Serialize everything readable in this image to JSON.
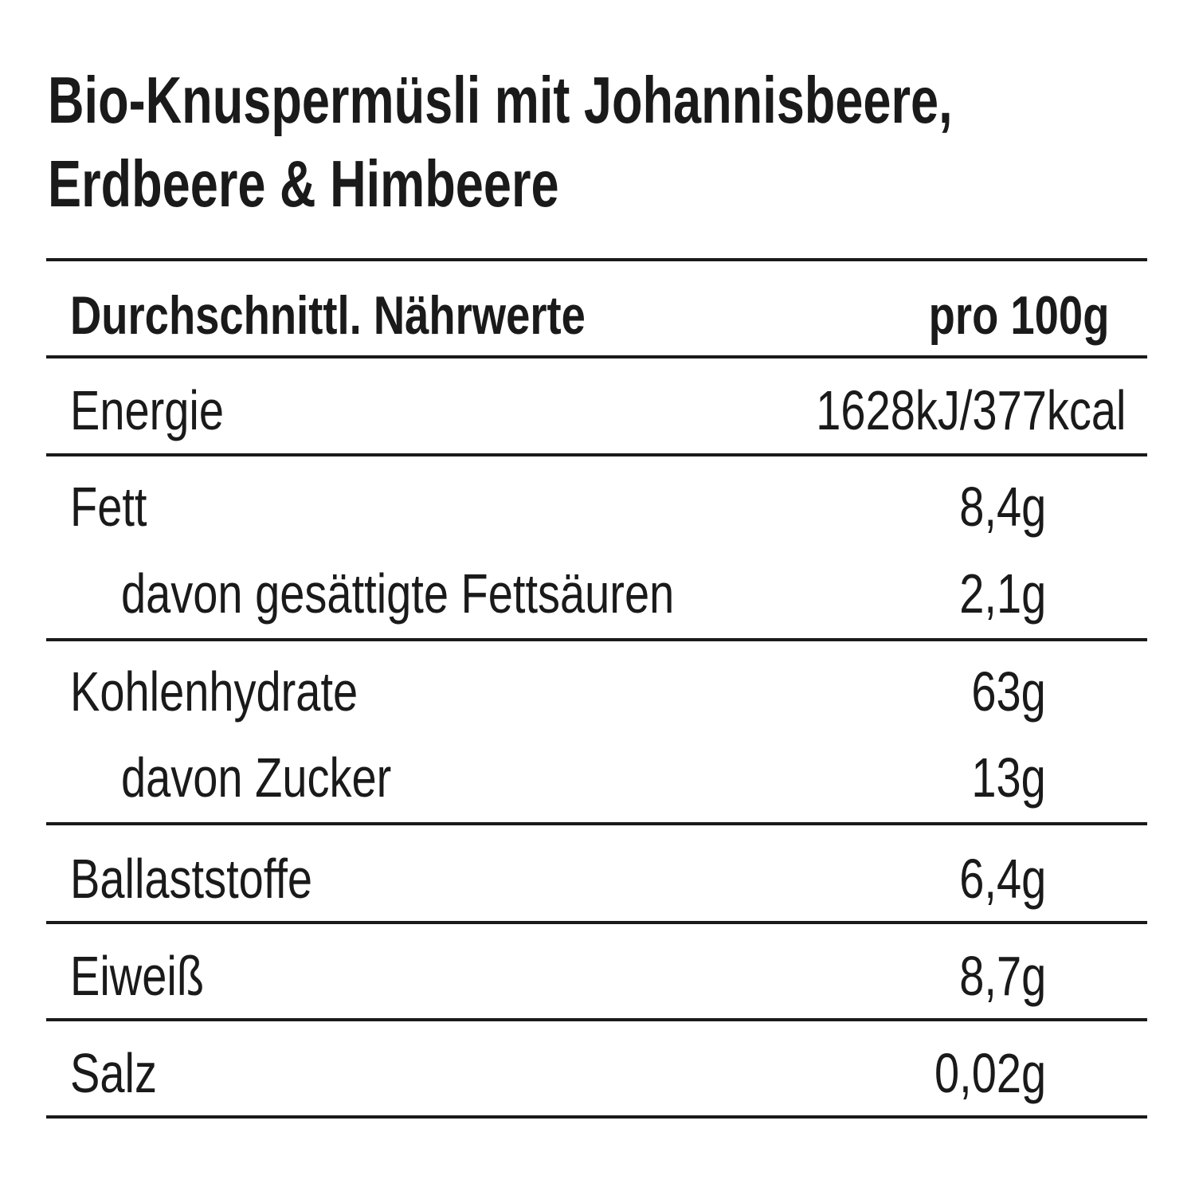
{
  "title": {
    "line1": "Bio-Knuspermüsli mit Johannisbeere,",
    "line2": "Erdbeere & Himbeere"
  },
  "table": {
    "header": {
      "label": "Durchschnittl. Nährwerte",
      "value": "pro 100g"
    },
    "rows": [
      {
        "label": "Energie",
        "value": "1628kJ/377kcal"
      },
      {
        "label": "Fett",
        "value": "8,4g"
      },
      {
        "label": "davon gesättigte Fettsäuren",
        "value": "2,1g"
      },
      {
        "label": "Kohlenhydrate",
        "value": "63g"
      },
      {
        "label": "davon Zucker",
        "value": "13g"
      },
      {
        "label": "Ballaststoffe",
        "value": "6,4g"
      },
      {
        "label": "Eiweiß",
        "value": "8,7g"
      },
      {
        "label": "Salz",
        "value": "0,02g"
      }
    ]
  },
  "colors": {
    "text": "#1a1a1a",
    "background": "#ffffff"
  }
}
